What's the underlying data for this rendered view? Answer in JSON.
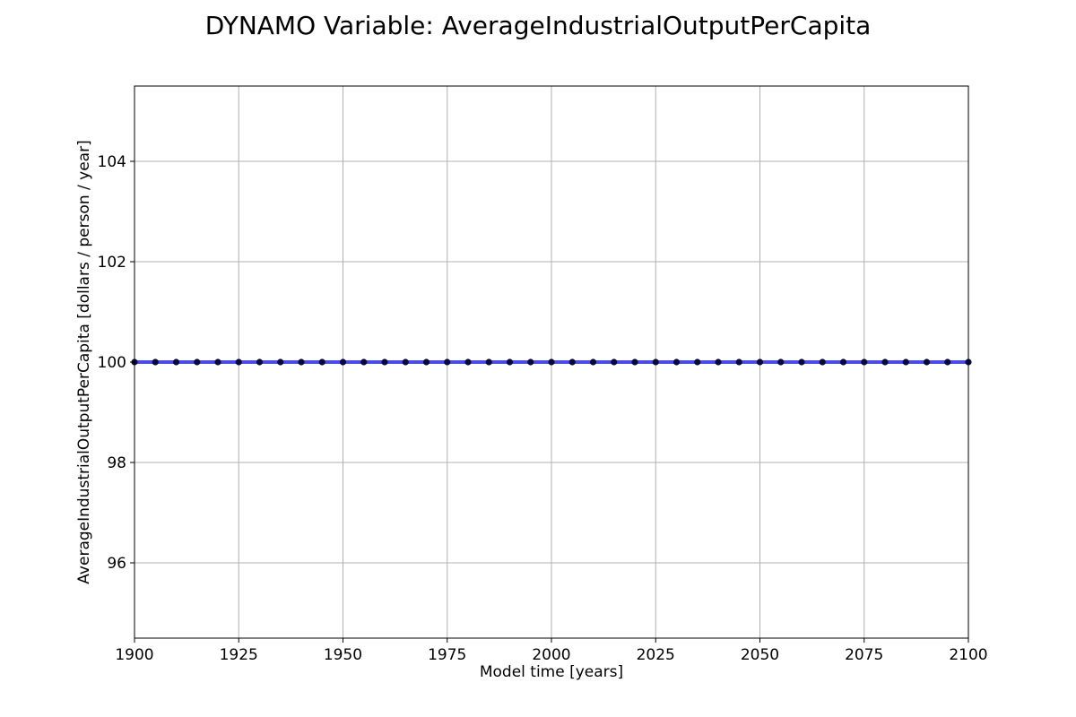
{
  "chart_data": {
    "type": "line",
    "title": "DYNAMO Variable: AverageIndustrialOutputPerCapita",
    "xlabel": "Model time [years]",
    "ylabel": "AverageIndustrialOutputPerCapita [dollars / person / year]",
    "xlim": [
      1900,
      2100
    ],
    "ylim": [
      94.5,
      105.5
    ],
    "xticks": [
      1900,
      1925,
      1950,
      1975,
      2000,
      2025,
      2050,
      2075,
      2100
    ],
    "yticks": [
      96,
      98,
      100,
      102,
      104
    ],
    "grid": true,
    "legend": "none",
    "series": [
      {
        "line_color": "#3a3ae6",
        "marker_color": "#0a0a3a",
        "x": [
          1900,
          1905,
          1910,
          1915,
          1920,
          1925,
          1930,
          1935,
          1940,
          1945,
          1950,
          1955,
          1960,
          1965,
          1970,
          1975,
          1980,
          1985,
          1990,
          1995,
          2000,
          2005,
          2010,
          2015,
          2020,
          2025,
          2030,
          2035,
          2040,
          2045,
          2050,
          2055,
          2060,
          2065,
          2070,
          2075,
          2080,
          2085,
          2090,
          2095,
          2100
        ],
        "y": [
          100,
          100,
          100,
          100,
          100,
          100,
          100,
          100,
          100,
          100,
          100,
          100,
          100,
          100,
          100,
          100,
          100,
          100,
          100,
          100,
          100,
          100,
          100,
          100,
          100,
          100,
          100,
          100,
          100,
          100,
          100,
          100,
          100,
          100,
          100,
          100,
          100,
          100,
          100,
          100,
          100
        ]
      }
    ]
  }
}
